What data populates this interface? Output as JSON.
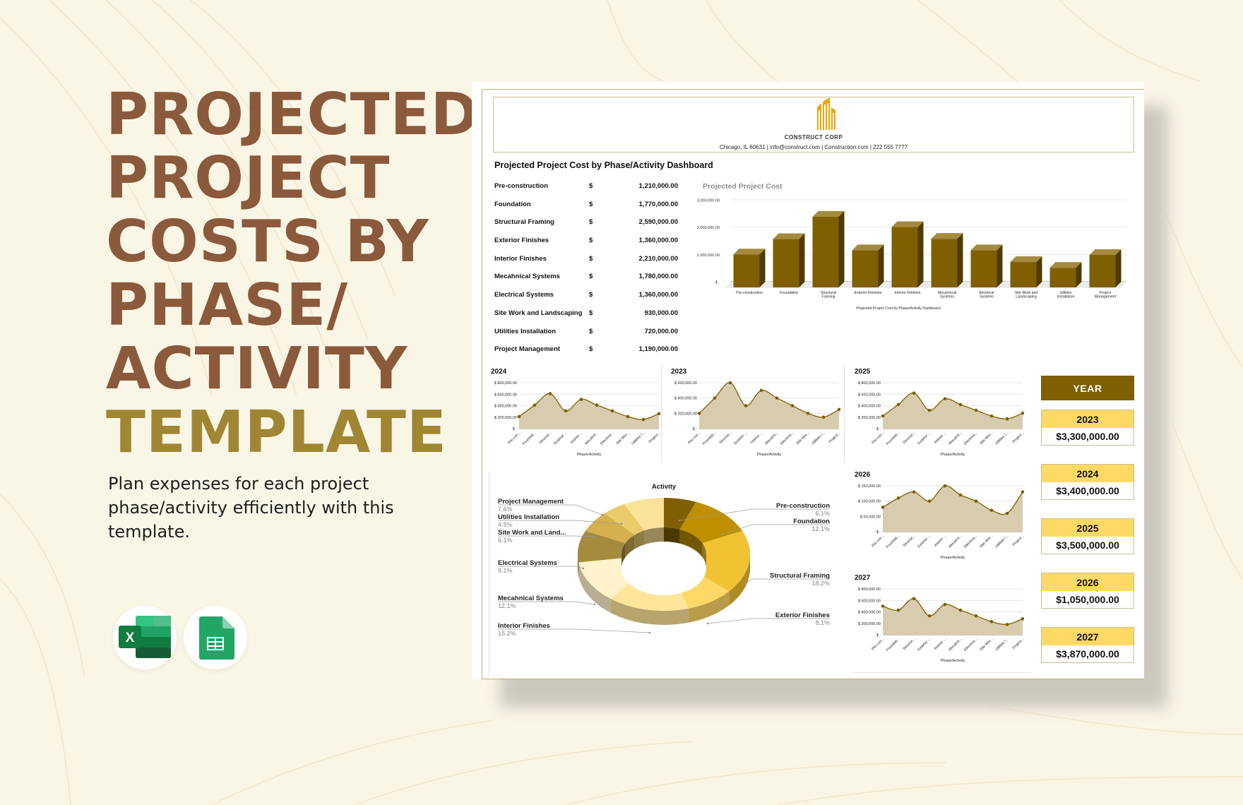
{
  "hero": {
    "title_lines": [
      "PROJECTED",
      "PROJECT",
      "COSTS BY",
      "PHASE/",
      "ACTIVITY"
    ],
    "title_accent": "TEMPLATE",
    "description": "Plan expenses for each project phase/activity efficiently with this template.",
    "apps": [
      {
        "name": "excel-icon",
        "label": "Microsoft Excel"
      },
      {
        "name": "google-sheets-icon",
        "label": "Google Sheets"
      }
    ]
  },
  "colors": {
    "background": "#FAF6E6",
    "title_brown": "#8B5A3C",
    "title_accent": "#A08632",
    "bar_fill": "#7F5F00",
    "year_header": "#7F5F00",
    "year_card_header": "#FFD966",
    "area_fill": "#D8CCAE",
    "line_color": "#7F5F00",
    "logo_orange": "#F0A500"
  },
  "sheet": {
    "company": "CONSTRUCT CORP",
    "contact": "Chicago, IL 60631 | info@construct.com | Construction.com | 222 555 7777",
    "dashboard_title": "Projected Project Cost by Phase/Activity Dashboard",
    "cost_table": [
      {
        "phase": "Pre-construction",
        "currency": "$",
        "amount": "1,210,000.00"
      },
      {
        "phase": "Foundation",
        "currency": "$",
        "amount": "1,770,000.00"
      },
      {
        "phase": "Structural Framing",
        "currency": "$",
        "amount": "2,590,000.00"
      },
      {
        "phase": "Exterior Finishes",
        "currency": "$",
        "amount": "1,360,000.00"
      },
      {
        "phase": "Interior Finishes",
        "currency": "$",
        "amount": "2,210,000.00"
      },
      {
        "phase": "Mecahnical Systems",
        "currency": "$",
        "amount": "1,780,000.00"
      },
      {
        "phase": "Electrical Systems",
        "currency": "$",
        "amount": "1,360,000.00"
      },
      {
        "phase": "Site Work and Landscaping",
        "currency": "$",
        "amount": "930,000.00"
      },
      {
        "phase": "Utilities Installation",
        "currency": "$",
        "amount": "720,000.00"
      },
      {
        "phase": "Project Management",
        "currency": "$",
        "amount": "1,190,000.00"
      }
    ],
    "year_panel": {
      "header": "YEAR",
      "years": [
        {
          "year": "2023",
          "total": "$3,300,000.00"
        },
        {
          "year": "2024",
          "total": "$3,400,000.00"
        },
        {
          "year": "2025",
          "total": "$3,500,000.00"
        },
        {
          "year": "2026",
          "total": "$1,050,000.00"
        },
        {
          "year": "2027",
          "total": "$3,870,000.00"
        }
      ]
    }
  },
  "chart_data": [
    {
      "id": "bar",
      "type": "bar",
      "title": "Projected Project Cost",
      "xlabel": "Projected Project Cost by Phase/Activity Dashboard",
      "ylabel": "",
      "categories": [
        "Pre-construction",
        "Foundation",
        "Structural Framing",
        "Exterior Finishes",
        "Interior Finishes",
        "Mecahnical Systems",
        "Electrical Systems",
        "Site Work and Landscaping",
        "Utilities Installation",
        "Project Management"
      ],
      "category_lines": [
        [
          "Pre-construction"
        ],
        [
          "Foundation"
        ],
        [
          "Structural",
          "Framing"
        ],
        [
          "Exterior Finishes"
        ],
        [
          "Interior Finishes"
        ],
        [
          "Mecahnical",
          "Systems"
        ],
        [
          "Electrical",
          "Systems"
        ],
        [
          "Site Work and",
          "Landscaping"
        ],
        [
          "Utilities",
          "Installation"
        ],
        [
          "Project",
          "Management"
        ]
      ],
      "values": [
        1210000,
        1770000,
        2590000,
        1360000,
        2210000,
        1780000,
        1360000,
        930000,
        720000,
        1190000
      ],
      "yticks": [
        "$ -",
        "$ 1,000,000.00",
        "$ 2,000,000.00",
        "$ 3,000,000.00"
      ],
      "ylim": [
        0,
        3000000
      ],
      "grid": true,
      "style": "3d"
    },
    {
      "id": "y2024",
      "type": "area",
      "title": "2024",
      "xlabel": "Phase/Activity",
      "categories": [
        "Pre-con...",
        "Foundati...",
        "Structur...",
        "Exterior ...",
        "Interior ...",
        "Mecahni...",
        "Electrica...",
        "Site Wor...",
        "Utilities I...",
        "Project..."
      ],
      "values": [
        210000,
        410000,
        610000,
        310000,
        510000,
        410000,
        310000,
        210000,
        160000,
        260000
      ],
      "yticks": [
        "$ -",
        "$ 200,000.00",
        "$ 400,000.00",
        "$ 600,000.00",
        "$ 800,000.00"
      ],
      "ylim": [
        0,
        800000
      ]
    },
    {
      "id": "y2023",
      "type": "area",
      "title": "2023",
      "xlabel": "Phase/Activity",
      "categories": [
        "Pre-con...",
        "Foundati...",
        "Structur...",
        "Exterior ...",
        "Interior ...",
        "Mecahni...",
        "Electrica...",
        "Site Wor...",
        "Utilities I...",
        "Project..."
      ],
      "values": [
        200000,
        400000,
        600000,
        300000,
        500000,
        400000,
        300000,
        200000,
        150000,
        250000
      ],
      "yticks": [
        "$ -",
        "$ 200,000.00",
        "$ 400,000.00",
        "$ 600,000.00"
      ],
      "ylim": [
        0,
        600000
      ]
    },
    {
      "id": "y2025",
      "type": "area",
      "title": "2025",
      "xlabel": "Phase/Activity",
      "categories": [
        "Pre-con...",
        "Foundati...",
        "Structur...",
        "Exterior ...",
        "Interior ...",
        "Mecahni...",
        "Electrica...",
        "Site Wor...",
        "Utilities I...",
        "Project..."
      ],
      "values": [
        220000,
        420000,
        620000,
        320000,
        520000,
        420000,
        320000,
        220000,
        170000,
        270000
      ],
      "yticks": [
        "$ -",
        "$ 200,000.00",
        "$ 400,000.00",
        "$ 600,000.00",
        "$ 800,000.00"
      ],
      "ylim": [
        0,
        800000
      ]
    },
    {
      "id": "y2026",
      "type": "area",
      "title": "2026",
      "xlabel": "Phase/Activity",
      "categories": [
        "Pre-con...",
        "Foundati...",
        "Structur...",
        "Exterior ...",
        "Interior ...",
        "Mecahni...",
        "Electrica...",
        "Site Wor...",
        "Utilities I...",
        "Project..."
      ],
      "values": [
        80000,
        110000,
        130000,
        100000,
        150000,
        120000,
        100000,
        70000,
        60000,
        130000
      ],
      "yticks": [
        "$ -",
        "$ 50,000.00",
        "$ 100,000.00",
        "$ 150,000.00"
      ],
      "ylim": [
        0,
        150000
      ]
    },
    {
      "id": "y2027",
      "type": "area",
      "title": "2027",
      "xlabel": "Phase/Activity",
      "categories": [
        "Pre-con...",
        "Foundati...",
        "Structur...",
        "Exterior ...",
        "Interior ...",
        "Mecahni...",
        "Electrica...",
        "Site Wor...",
        "Utilities I...",
        "Project..."
      ],
      "values": [
        500000,
        430000,
        630000,
        330000,
        530000,
        430000,
        330000,
        230000,
        180000,
        280000
      ],
      "yticks": [
        "$ -",
        "$ 200,000.00",
        "$ 400,000.00",
        "$ 600,000.00",
        "$ 800,000.00"
      ],
      "ylim": [
        0,
        800000
      ]
    },
    {
      "id": "donut",
      "type": "pie",
      "title": "Activity",
      "slices": [
        {
          "label": "Pre-construction",
          "pct": "6.1%",
          "value": 6.1,
          "color": "#7F5F00"
        },
        {
          "label": "Foundation",
          "pct": "12.1%",
          "value": 12.1,
          "color": "#BF8F00"
        },
        {
          "label": "Structural Framing",
          "pct": "18.2%",
          "value": 18.2,
          "color": "#F1C232"
        },
        {
          "label": "Exterior Finishes",
          "pct": "9.1%",
          "value": 9.1,
          "color": "#FFD966"
        },
        {
          "label": "Interior Finishes",
          "pct": "15.2%",
          "value": 15.2,
          "color": "#FFE599"
        },
        {
          "label": "Mecahnical Systems",
          "pct": "12.1%",
          "value": 12.1,
          "color": "#FFF2CC"
        },
        {
          "label": "Electrical Systems",
          "pct": "9.1%",
          "value": 9.1,
          "color": "#A68A3E"
        },
        {
          "label": "Site Work and Land...",
          "pct": "6.1%",
          "value": 6.1,
          "color": "#D4B04E"
        },
        {
          "label": "Utilities Installation",
          "pct": "4.5%",
          "value": 4.5,
          "color": "#EBCB6A"
        },
        {
          "label": "Project Management",
          "pct": "7.6%",
          "value": 7.6,
          "color": "#FCE39A"
        }
      ]
    }
  ]
}
